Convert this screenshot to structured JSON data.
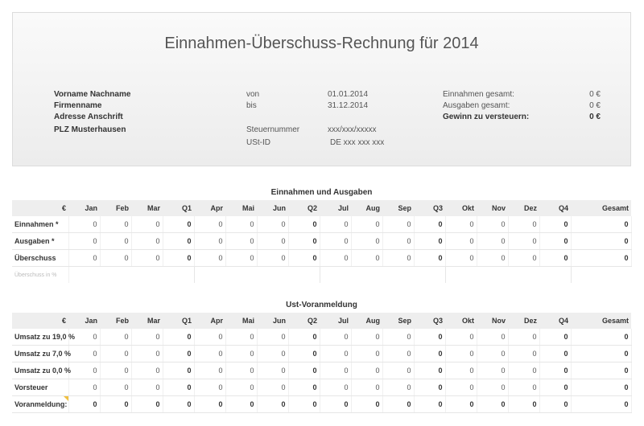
{
  "title": "Einnahmen-Überschuss-Rechnung für 2014",
  "address": [
    "Vorname Nachname",
    "Firmenname",
    "Adresse Anschrift",
    "PLZ Musterhausen"
  ],
  "period": {
    "von_label": "von",
    "von_value": "01.01.2014",
    "bis_label": "bis",
    "bis_value": "31.12.2014"
  },
  "tax": {
    "steuernummer_label": "Steuernummer",
    "steuernummer_value": "xxx/xxx/xxxxx",
    "ustid_label": "USt-ID",
    "ustid_value": "DE xxx xxx xxx"
  },
  "summary": {
    "einnahmen_label": "Einnahmen gesamt:",
    "einnahmen_value": "0 €",
    "ausgaben_label": "Ausgaben gesamt:",
    "ausgaben_value": "0 €",
    "gewinn_label": "Gewinn zu versteuern:",
    "gewinn_value": "0 €"
  },
  "table1": {
    "title": "Einnahmen und Ausgaben",
    "headers": [
      "€",
      "Jan",
      "Feb",
      "Mar",
      "Q1",
      "Apr",
      "Mai",
      "Jun",
      "Q2",
      "Jul",
      "Aug",
      "Sep",
      "Q3",
      "Okt",
      "Nov",
      "Dez",
      "Q4",
      "Gesamt"
    ],
    "rows": [
      {
        "label": "Einnahmen *",
        "values": [
          "0",
          "0",
          "0",
          "0",
          "0",
          "0",
          "0",
          "0",
          "0",
          "0",
          "0",
          "0",
          "0",
          "0",
          "0",
          "0",
          "0"
        ]
      },
      {
        "label": "Ausgaben *",
        "values": [
          "0",
          "0",
          "0",
          "0",
          "0",
          "0",
          "0",
          "0",
          "0",
          "0",
          "0",
          "0",
          "0",
          "0",
          "0",
          "0",
          "0"
        ]
      },
      {
        "label": "Überschuss",
        "values": [
          "0",
          "0",
          "0",
          "0",
          "0",
          "0",
          "0",
          "0",
          "0",
          "0",
          "0",
          "0",
          "0",
          "0",
          "0",
          "0",
          "0"
        ]
      }
    ],
    "sub_label": "Überschuss in %"
  },
  "table2": {
    "title": "Ust-Voranmeldung",
    "headers": [
      "€",
      "Jan",
      "Feb",
      "Mar",
      "Q1",
      "Apr",
      "Mai",
      "Jun",
      "Q2",
      "Jul",
      "Aug",
      "Sep",
      "Q3",
      "Okt",
      "Nov",
      "Dez",
      "Q4",
      "Gesamt"
    ],
    "rows": [
      {
        "label": "Umsatz zu 19,0 %",
        "values": [
          "0",
          "0",
          "0",
          "0",
          "0",
          "0",
          "0",
          "0",
          "0",
          "0",
          "0",
          "0",
          "0",
          "0",
          "0",
          "0",
          "0"
        ]
      },
      {
        "label": "Umsatz zu  7,0 %",
        "values": [
          "0",
          "0",
          "0",
          "0",
          "0",
          "0",
          "0",
          "0",
          "0",
          "0",
          "0",
          "0",
          "0",
          "0",
          "0",
          "0",
          "0"
        ]
      },
      {
        "label": "Umsatz zu  0,0 %",
        "values": [
          "0",
          "0",
          "0",
          "0",
          "0",
          "0",
          "0",
          "0",
          "0",
          "0",
          "0",
          "0",
          "0",
          "0",
          "0",
          "0",
          "0"
        ]
      },
      {
        "label": "Vorsteuer",
        "values": [
          "0",
          "0",
          "0",
          "0",
          "0",
          "0",
          "0",
          "0",
          "0",
          "0",
          "0",
          "0",
          "0",
          "0",
          "0",
          "0",
          "0"
        ]
      }
    ],
    "total": {
      "label": "Voranmeldung:",
      "values": [
        "0",
        "0",
        "0",
        "0",
        "0",
        "0",
        "0",
        "0",
        "0",
        "0",
        "0",
        "0",
        "0",
        "0",
        "0",
        "0",
        "0"
      ]
    }
  }
}
